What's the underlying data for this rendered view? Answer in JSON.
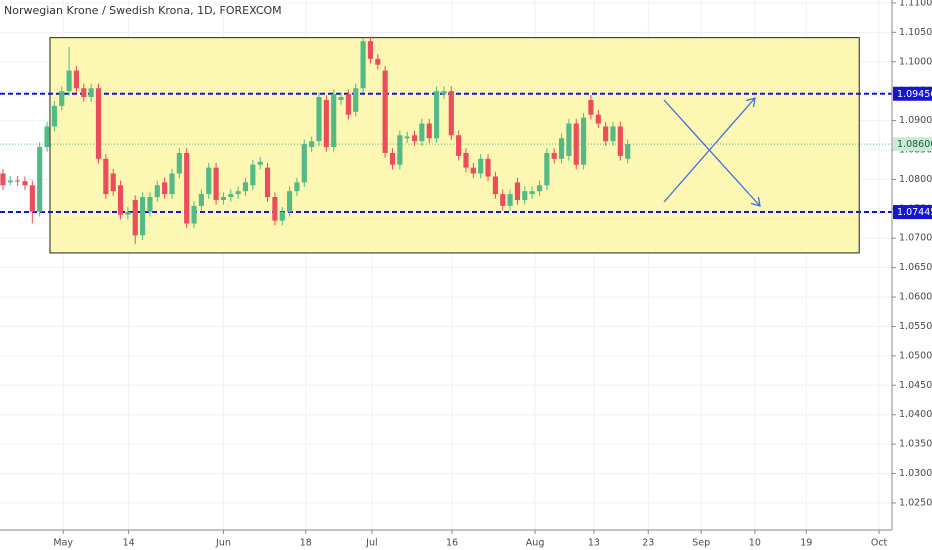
{
  "chart_data": {
    "type": "candlestick",
    "title": "Norwegian Krone / Swedish Krona, 1D, FOREXCOM",
    "up_color": "#53b987",
    "down_color": "#eb4d5c",
    "grid": true,
    "x": [
      0,
      1,
      2,
      3,
      4,
      5,
      6,
      7,
      8,
      9,
      10,
      11,
      12,
      13,
      14,
      15,
      16,
      17,
      18,
      19,
      20,
      21,
      22,
      23,
      24,
      25,
      26,
      27,
      28,
      29,
      30,
      31,
      32,
      33,
      34,
      35,
      36,
      37,
      38,
      39,
      40,
      41,
      42,
      43,
      44,
      45,
      46,
      47,
      48,
      49,
      50,
      51,
      52,
      53,
      54,
      55,
      56,
      57,
      58,
      59,
      60,
      61,
      62,
      63,
      64,
      65,
      66,
      67,
      68,
      69,
      70,
      71,
      72,
      73,
      74,
      75,
      76,
      77,
      78,
      79,
      80,
      81,
      82,
      83,
      84,
      85
    ],
    "open": [
      1.081,
      1.0795,
      1.0798,
      1.0797,
      1.079,
      1.0745,
      1.0855,
      1.089,
      1.0925,
      1.095,
      1.0985,
      1.0955,
      1.094,
      1.0955,
      1.0835,
      1.081,
      1.079,
      1.074,
      1.0765,
      1.0705,
      1.0745,
      1.077,
      1.0795,
      1.0775,
      1.081,
      1.0845,
      1.0725,
      1.0755,
      1.0775,
      1.082,
      1.0765,
      1.077,
      1.0775,
      1.078,
      1.079,
      1.0825,
      1.082,
      1.077,
      1.073,
      1.0745,
      1.078,
      1.0795,
      1.0855,
      1.0865,
      1.0935,
      1.0855,
      1.0935,
      1.0945,
      1.0915,
      1.0955,
      1.1035,
      1.1005,
      1.0985,
      1.0845,
      1.0825,
      1.087,
      1.0875,
      1.0865,
      1.0895,
      1.087,
      1.0945,
      1.095,
      1.0875,
      1.0845,
      1.082,
      1.081,
      1.0835,
      1.0805,
      1.0775,
      1.0755,
      1.0795,
      1.0765,
      1.0775,
      1.078,
      1.079,
      1.0845,
      1.0835,
      1.084,
      1.0895,
      1.0825,
      1.0935,
      1.091,
      1.089,
      1.0865,
      1.089,
      1.0835
    ],
    "high": [
      1.0818,
      1.0806,
      1.0806,
      1.0805,
      1.0798,
      1.0863,
      1.0898,
      1.0933,
      1.0958,
      1.1025,
      1.0993,
      1.0963,
      1.0963,
      1.0963,
      1.0843,
      1.0818,
      1.0798,
      1.0753,
      1.0773,
      1.0778,
      1.0778,
      1.0798,
      1.0803,
      1.0818,
      1.0853,
      1.0853,
      1.0763,
      1.0783,
      1.0828,
      1.0828,
      1.0778,
      1.0783,
      1.0788,
      1.0803,
      1.0833,
      1.0838,
      1.0828,
      1.0778,
      1.0753,
      1.0788,
      1.0803,
      1.0868,
      1.0873,
      1.0948,
      1.0943,
      1.0953,
      1.0948,
      1.0953,
      1.0963,
      1.104,
      1.1043,
      1.1013,
      1.0993,
      1.0853,
      1.0883,
      1.0881,
      1.0883,
      1.0903,
      1.0903,
      1.0958,
      1.0958,
      1.0958,
      1.0883,
      1.0853,
      1.0828,
      1.0843,
      1.0843,
      1.0813,
      1.0783,
      1.0783,
      1.0803,
      1.0788,
      1.0788,
      1.0798,
      1.0853,
      1.0853,
      1.0878,
      1.0903,
      1.0903,
      1.0913,
      1.0943,
      1.0918,
      1.0898,
      1.0898,
      1.0898,
      1.0868
    ],
    "low": [
      1.0782,
      1.079,
      1.0789,
      1.0782,
      1.0725,
      1.0737,
      1.0847,
      1.0882,
      1.0917,
      1.0942,
      1.0947,
      1.0932,
      1.0932,
      1.0827,
      1.0767,
      1.0772,
      1.0732,
      1.0732,
      1.069,
      1.0697,
      1.0737,
      1.0762,
      1.0767,
      1.0767,
      1.0802,
      1.0717,
      1.0717,
      1.0747,
      1.0767,
      1.0757,
      1.0757,
      1.0762,
      1.0767,
      1.0772,
      1.0782,
      1.0817,
      1.0762,
      1.0722,
      1.0722,
      1.0737,
      1.0772,
      1.0787,
      1.0847,
      1.0857,
      1.0847,
      1.0847,
      1.0927,
      1.0902,
      1.0907,
      1.0947,
      1.0997,
      1.0987,
      1.0837,
      1.0817,
      1.0817,
      1.0862,
      1.0857,
      1.0857,
      1.0862,
      1.0862,
      1.0937,
      1.0867,
      1.0832,
      1.0812,
      1.0802,
      1.0802,
      1.0797,
      1.0767,
      1.0747,
      1.0747,
      1.0757,
      1.0757,
      1.0767,
      1.0772,
      1.0782,
      1.0827,
      1.0827,
      1.0832,
      1.0817,
      1.0817,
      1.0902,
      1.0887,
      1.0857,
      1.0857,
      1.0832,
      1.0827
    ],
    "close": [
      1.079,
      1.0798,
      1.0797,
      1.079,
      1.0745,
      1.0855,
      1.089,
      1.0925,
      1.095,
      1.0985,
      1.0955,
      1.094,
      1.0955,
      1.0835,
      1.0775,
      1.078,
      1.074,
      1.0745,
      1.0705,
      1.077,
      1.077,
      1.079,
      1.0775,
      1.081,
      1.0845,
      1.0725,
      1.0755,
      1.0775,
      1.082,
      1.0765,
      1.077,
      1.0775,
      1.078,
      1.0795,
      1.0825,
      1.083,
      1.077,
      1.073,
      1.0745,
      1.078,
      1.0795,
      1.086,
      1.0865,
      1.094,
      1.0855,
      1.0945,
      1.094,
      1.091,
      1.0955,
      1.1035,
      1.1005,
      1.0995,
      1.0845,
      1.0825,
      1.0875,
      1.0873,
      1.0865,
      1.0895,
      1.087,
      1.095,
      1.095,
      1.0875,
      1.084,
      1.082,
      1.081,
      1.0835,
      1.0805,
      1.0775,
      1.0755,
      1.0775,
      1.0765,
      1.078,
      1.078,
      1.079,
      1.0845,
      1.0835,
      1.087,
      1.0895,
      1.0825,
      1.0905,
      1.091,
      1.0895,
      1.0865,
      1.089,
      1.084,
      1.086
    ],
    "xlim": [
      -0.4,
      120.96
    ],
    "xticks": [
      {
        "value": 8.2,
        "label": "May"
      },
      {
        "value": 17.1,
        "label": "14"
      },
      {
        "value": 30,
        "label": "Jun"
      },
      {
        "value": 41.2,
        "label": "18"
      },
      {
        "value": 50.2,
        "label": "Jul"
      },
      {
        "value": 61.1,
        "label": "16"
      },
      {
        "value": 72.4,
        "label": "Aug"
      },
      {
        "value": 80.4,
        "label": "13"
      },
      {
        "value": 87.8,
        "label": "23"
      },
      {
        "value": 95,
        "label": "Sep"
      },
      {
        "value": 102.3,
        "label": "10"
      },
      {
        "value": 109.3,
        "label": "19"
      },
      {
        "value": 119.2,
        "label": "Oct"
      }
    ],
    "ylim": [
      1.0204,
      1.1105
    ],
    "yticks": [
      {
        "value": 1.025,
        "label": "1.02500"
      },
      {
        "value": 1.03,
        "label": "1.03000"
      },
      {
        "value": 1.035,
        "label": "1.03500"
      },
      {
        "value": 1.04,
        "label": "1.04000"
      },
      {
        "value": 1.045,
        "label": "1.04500"
      },
      {
        "value": 1.05,
        "label": "1.05000"
      },
      {
        "value": 1.055,
        "label": "1.05500"
      },
      {
        "value": 1.06,
        "label": "1.06000"
      },
      {
        "value": 1.065,
        "label": "1.06500"
      },
      {
        "value": 1.07,
        "label": "1.07000"
      },
      {
        "value": 1.075,
        "label": "1.07500"
      },
      {
        "value": 1.08,
        "label": "1.08000"
      },
      {
        "value": 1.085,
        "label": "1.08500"
      },
      {
        "value": 1.09,
        "label": "1.09000"
      },
      {
        "value": 1.095,
        "label": "1.09500"
      },
      {
        "value": 1.1,
        "label": "1.10000"
      },
      {
        "value": 1.105,
        "label": "1.10500"
      },
      {
        "value": 1.11,
        "label": "1.11000"
      }
    ],
    "levels": [
      {
        "value": 1.09456,
        "label": "1.09456"
      },
      {
        "value": 1.07445,
        "label": "1.07445"
      }
    ],
    "level_color": "#1515d6",
    "last_price": {
      "value": 1.086,
      "label": "1.08600"
    },
    "last_price_color": "#53b987",
    "box": {
      "x": [
        6.4,
        116.5
      ],
      "y": [
        1.0675,
        1.1041
      ]
    },
    "box_color": "#fcf7b2"
  }
}
